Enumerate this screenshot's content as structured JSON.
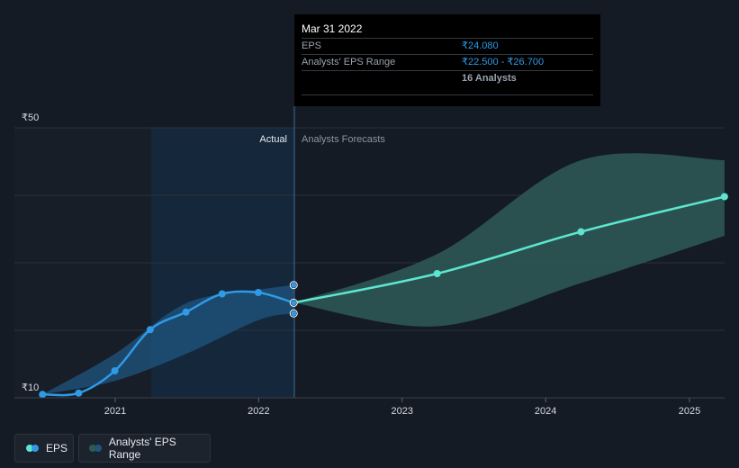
{
  "tooltip": {
    "date": "Mar 31 2022",
    "eps_label": "EPS",
    "eps_value": "₹24.080",
    "range_label": "Analysts' EPS Range",
    "range_value": "₹22.500 - ₹26.700",
    "analysts": "16 Analysts"
  },
  "legend": {
    "eps_label": "EPS",
    "range_label": "Analysts' EPS Range"
  },
  "colors": {
    "background": "#151b24",
    "eps_actual": "#2f9ae6",
    "eps_forecast": "#5ce6d0",
    "range_actual": "#1f5580",
    "range_forecast": "#2e5a57",
    "actual_highlight": "#16324d"
  },
  "chart_data": {
    "type": "line",
    "y_axis_labels": [
      "₹50",
      "₹10"
    ],
    "ylim": [
      10,
      50
    ],
    "x_ticks": [
      "2021",
      "2022",
      "2023",
      "2024",
      "2025"
    ],
    "section_labels": {
      "actual": "Actual",
      "forecast": "Analysts Forecasts"
    },
    "divider_date": "2022-03-31",
    "series": [
      {
        "name": "EPS",
        "kind": "actual",
        "points": [
          {
            "x": "2020-06-30",
            "y": 10.5
          },
          {
            "x": "2020-09-30",
            "y": 10.7
          },
          {
            "x": "2020-12-31",
            "y": 14.0
          },
          {
            "x": "2021-03-31",
            "y": 20.1
          },
          {
            "x": "2021-06-30",
            "y": 22.7
          },
          {
            "x": "2021-09-30",
            "y": 25.4
          },
          {
            "x": "2021-12-31",
            "y": 25.6
          },
          {
            "x": "2022-03-31",
            "y": 24.08
          }
        ]
      },
      {
        "name": "EPS",
        "kind": "forecast",
        "points": [
          {
            "x": "2022-03-31",
            "y": 24.08
          },
          {
            "x": "2023-03-31",
            "y": 28.4
          },
          {
            "x": "2024-03-31",
            "y": 34.6
          },
          {
            "x": "2025-03-31",
            "y": 39.8
          }
        ]
      }
    ],
    "range": {
      "name": "Analysts' EPS Range",
      "actual": [
        {
          "x": "2020-06-30",
          "low": 10.5,
          "high": 10.5
        },
        {
          "x": "2020-12-31",
          "low": 12.5,
          "high": 16.5
        },
        {
          "x": "2021-06-30",
          "low": 16.5,
          "high": 24.0
        },
        {
          "x": "2021-12-31",
          "low": 21.5,
          "high": 26.0
        },
        {
          "x": "2022-03-31",
          "low": 22.5,
          "high": 26.7
        }
      ],
      "forecast": [
        {
          "x": "2022-03-31",
          "low": 24.08,
          "high": 24.08
        },
        {
          "x": "2023-03-31",
          "low": 20.6,
          "high": 31.3
        },
        {
          "x": "2024-03-31",
          "low": 27.0,
          "high": 45.2
        },
        {
          "x": "2025-03-31",
          "low": 34.0,
          "high": 45.2
        }
      ],
      "highlight_point": {
        "x": "2022-03-31",
        "low": 22.5,
        "high": 26.7
      }
    }
  }
}
